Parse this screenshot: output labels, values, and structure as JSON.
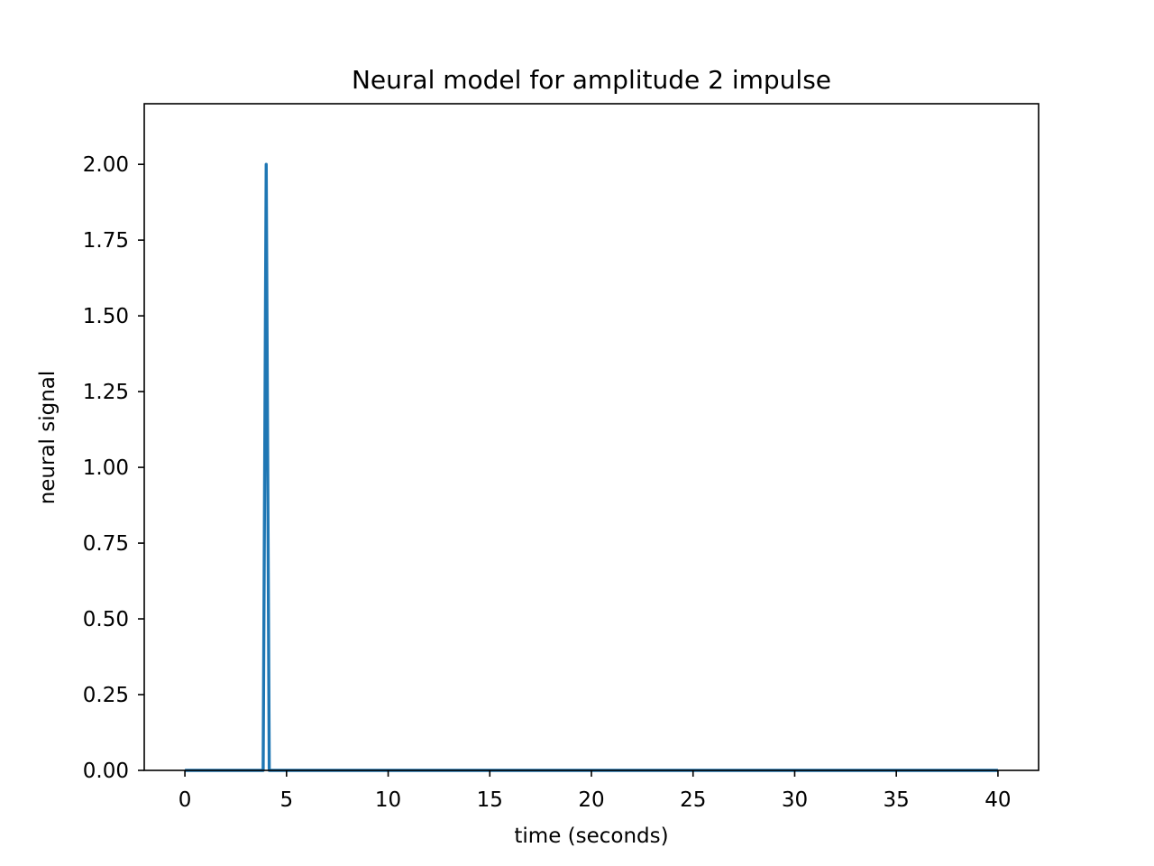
{
  "chart_data": {
    "type": "line",
    "title": "Neural model for amplitude 2 impulse",
    "xlabel": "time (seconds)",
    "ylabel": "neural signal",
    "xlim": [
      -2,
      42
    ],
    "ylim": [
      0,
      2.2
    ],
    "xticks": [
      0,
      5,
      10,
      15,
      20,
      25,
      30,
      35,
      40
    ],
    "xtick_labels": [
      "0",
      "5",
      "10",
      "15",
      "20",
      "25",
      "30",
      "35",
      "40"
    ],
    "yticks": [
      0,
      0.25,
      0.5,
      0.75,
      1.0,
      1.25,
      1.5,
      1.75,
      2.0
    ],
    "ytick_labels": [
      "0.00",
      "0.25",
      "0.50",
      "0.75",
      "1.00",
      "1.25",
      "1.50",
      "1.75",
      "2.00"
    ],
    "grid": false,
    "series": [
      {
        "color": "#1f77b4",
        "x": [
          0,
          3.85,
          4.0,
          4.15,
          40
        ],
        "y": [
          0,
          0,
          2.0,
          0,
          0
        ]
      }
    ]
  }
}
